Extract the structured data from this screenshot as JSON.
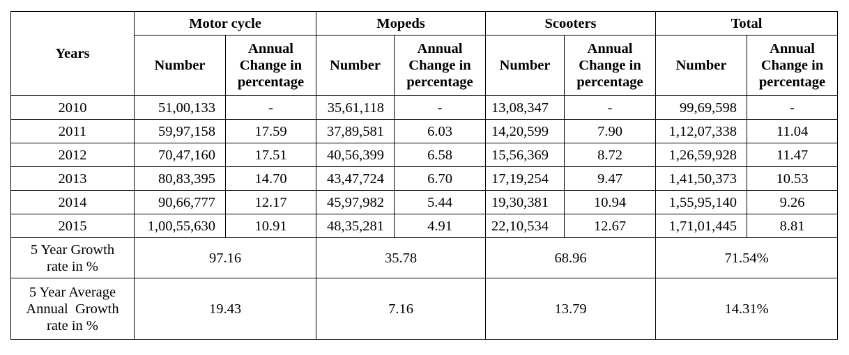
{
  "table": {
    "col_header_years": "Years",
    "groups": [
      "Motor cycle",
      "Mopeds",
      "Scooters",
      "Total"
    ],
    "sub_number": "Number",
    "sub_change_lines": [
      "Annual",
      "Change in",
      "percentage"
    ],
    "rows": [
      {
        "year": "2010",
        "cells": [
          "51,00,133",
          "-",
          "35,61,118",
          "-",
          "13,08,347",
          "-",
          "99,69,598",
          "-"
        ]
      },
      {
        "year": "2011",
        "cells": [
          "59,97,158",
          "17.59",
          "37,89,581",
          "6.03",
          "14,20,599",
          "7.90",
          "1,12,07,338",
          "11.04"
        ]
      },
      {
        "year": "2012",
        "cells": [
          "70,47,160",
          "17.51",
          "40,56,399",
          "6.58",
          "15,56,369",
          "8.72",
          "1,26,59,928",
          "11.47"
        ]
      },
      {
        "year": "2013",
        "cells": [
          "80,83,395",
          "14.70",
          "43,47,724",
          "6.70",
          "17,19,254",
          "9.47",
          "1,41,50,373",
          "10.53"
        ]
      },
      {
        "year": "2014",
        "cells": [
          "90,66,777",
          "12.17",
          "45,97,982",
          "5.44",
          "19,30,381",
          "10.94",
          "1,55,95,140",
          "9.26"
        ]
      },
      {
        "year": "2015",
        "cells": [
          "1,00,55,630",
          "10.91",
          "48,35,281",
          "4.91",
          "22,10,534",
          "12.67",
          "1,71,01,445",
          "8.81"
        ]
      }
    ],
    "growth": {
      "label_lines": [
        "5 Year Growth",
        "rate in %"
      ],
      "values": [
        "97.16",
        "35.78",
        "68.96",
        "71.54%"
      ]
    },
    "avg_growth": {
      "label_lines": [
        "5 Year Average",
        "Annual  Growth",
        "rate in %"
      ],
      "values": [
        "19.43",
        "7.16",
        "13.79",
        "14.31%"
      ]
    }
  }
}
